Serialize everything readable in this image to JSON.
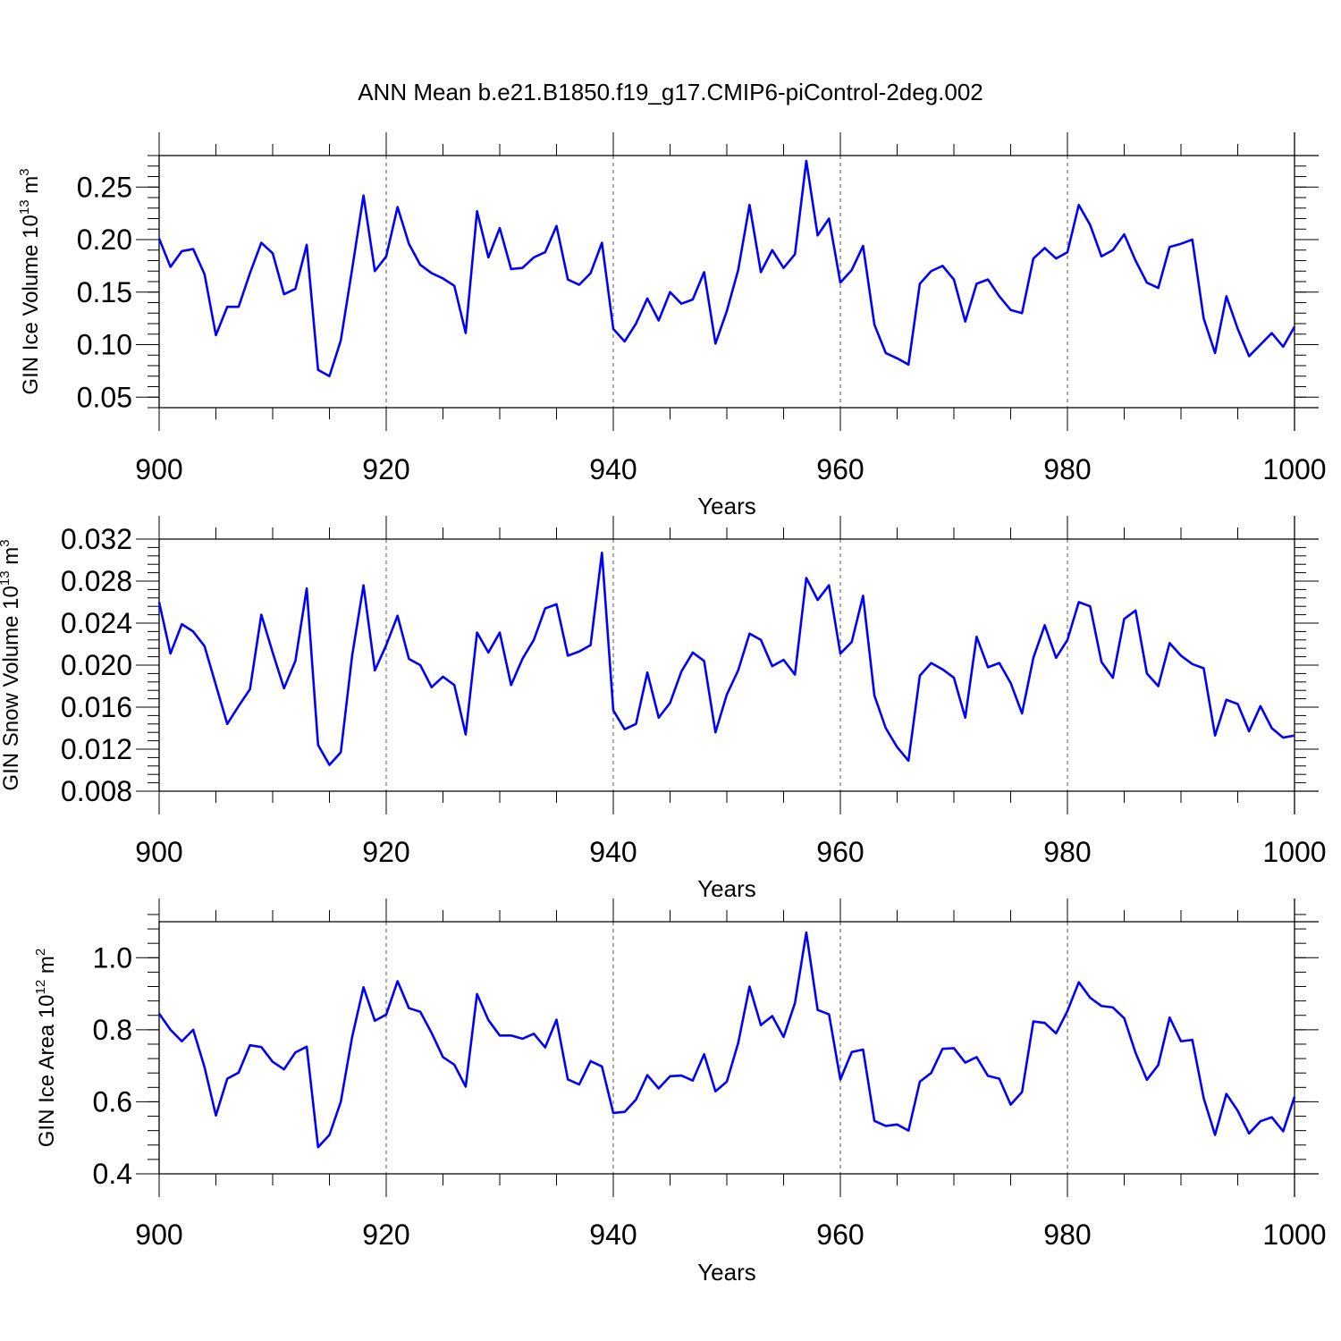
{
  "title": "ANN Mean b.e21.B1850.f19_g17.CMIP6-piControl-2deg.002",
  "chart_data": [
    {
      "type": "line",
      "name": "ice-volume",
      "ylabel_main": "GIN Ice Volume 10",
      "ylabel_exp": "13",
      "ylabel_unit": " m",
      "ylabel_unit_exp": "3",
      "xlabel": "Years",
      "xlim": [
        900,
        1000
      ],
      "ylim": [
        0.04,
        0.28
      ],
      "yticks": [
        0.05,
        0.1,
        0.15,
        0.2,
        0.25
      ],
      "ytick_labels": [
        "0.05",
        "0.10",
        "0.15",
        "0.20",
        "0.25"
      ],
      "xticks": [
        900,
        920,
        940,
        960,
        980,
        1000
      ],
      "xtick_labels": [
        "900",
        "920",
        "940",
        "960",
        "980",
        "1000"
      ],
      "grid_x": [
        920,
        940,
        960,
        980
      ],
      "color": "#0000ff",
      "x_start": 900,
      "values": [
        0.201,
        0.174,
        0.189,
        0.191,
        0.167,
        0.109,
        0.136,
        0.136,
        0.168,
        0.197,
        0.187,
        0.148,
        0.153,
        0.195,
        0.076,
        0.07,
        0.104,
        0.172,
        0.242,
        0.17,
        0.184,
        0.231,
        0.196,
        0.176,
        0.168,
        0.163,
        0.156,
        0.111,
        0.227,
        0.183,
        0.211,
        0.172,
        0.173,
        0.183,
        0.188,
        0.213,
        0.162,
        0.157,
        0.168,
        0.197,
        0.115,
        0.103,
        0.12,
        0.144,
        0.123,
        0.15,
        0.139,
        0.143,
        0.169,
        0.101,
        0.132,
        0.171,
        0.233,
        0.169,
        0.19,
        0.173,
        0.186,
        0.275,
        0.204,
        0.22,
        0.159,
        0.171,
        0.194,
        0.119,
        0.092,
        0.087,
        0.081,
        0.158,
        0.17,
        0.175,
        0.162,
        0.122,
        0.158,
        0.162,
        0.146,
        0.133,
        0.13,
        0.182,
        0.192,
        0.182,
        0.188,
        0.233,
        0.214,
        0.184,
        0.19,
        0.205,
        0.18,
        0.159,
        0.154,
        0.193,
        0.196,
        0.2,
        0.125,
        0.092,
        0.146,
        0.115,
        0.089,
        0.1,
        0.111,
        0.098,
        0.117
      ]
    },
    {
      "type": "line",
      "name": "snow-volume",
      "ylabel_main": "GIN Snow Volume 10",
      "ylabel_exp": "13",
      "ylabel_unit": " m",
      "ylabel_unit_exp": "3",
      "xlabel": "Years",
      "xlim": [
        900,
        1000
      ],
      "ylim": [
        0.008,
        0.032
      ],
      "yticks": [
        0.008,
        0.012,
        0.016,
        0.02,
        0.024,
        0.028,
        0.032
      ],
      "ytick_labels": [
        "0.008",
        "0.012",
        "0.016",
        "0.020",
        "0.024",
        "0.028",
        "0.032"
      ],
      "xticks": [
        900,
        920,
        940,
        960,
        980,
        1000
      ],
      "xtick_labels": [
        "900",
        "920",
        "940",
        "960",
        "980",
        "1000"
      ],
      "grid_x": [
        920,
        940,
        960,
        980
      ],
      "color": "#0000ff",
      "x_start": 900,
      "values": [
        0.026,
        0.0211,
        0.0239,
        0.0232,
        0.0218,
        0.0181,
        0.0144,
        0.0161,
        0.0177,
        0.0248,
        0.0212,
        0.0178,
        0.0204,
        0.0273,
        0.0124,
        0.0105,
        0.0117,
        0.0209,
        0.0276,
        0.0195,
        0.0219,
        0.0247,
        0.0206,
        0.02,
        0.0179,
        0.0189,
        0.0181,
        0.0134,
        0.0231,
        0.0212,
        0.0231,
        0.0181,
        0.0206,
        0.0224,
        0.0254,
        0.0258,
        0.0209,
        0.0213,
        0.0219,
        0.0307,
        0.0157,
        0.0139,
        0.0144,
        0.0193,
        0.015,
        0.0164,
        0.0194,
        0.0212,
        0.0204,
        0.0136,
        0.0172,
        0.0195,
        0.023,
        0.0224,
        0.0199,
        0.0205,
        0.0191,
        0.0283,
        0.0262,
        0.0276,
        0.0211,
        0.0222,
        0.0266,
        0.0171,
        0.014,
        0.0122,
        0.0109,
        0.019,
        0.0202,
        0.0196,
        0.0188,
        0.015,
        0.0227,
        0.0198,
        0.0202,
        0.0183,
        0.0154,
        0.0207,
        0.0238,
        0.0207,
        0.0224,
        0.026,
        0.0256,
        0.0203,
        0.0188,
        0.0244,
        0.0252,
        0.0192,
        0.018,
        0.0221,
        0.0209,
        0.0201,
        0.0197,
        0.0133,
        0.0167,
        0.0163,
        0.0137,
        0.0161,
        0.014,
        0.0131,
        0.0133
      ]
    },
    {
      "type": "line",
      "name": "ice-area",
      "ylabel_main": "GIN Ice Area 10",
      "ylabel_exp": "12",
      "ylabel_unit": " m",
      "ylabel_unit_exp": "2",
      "xlabel": "Years",
      "xlim": [
        900,
        1000
      ],
      "ylim": [
        0.4,
        1.1
      ],
      "yticks": [
        0.4,
        0.6,
        0.8,
        1.0
      ],
      "ytick_labels": [
        "0.4",
        "0.6",
        "0.8",
        "1.0"
      ],
      "xticks": [
        900,
        920,
        940,
        960,
        980,
        1000
      ],
      "xtick_labels": [
        "900",
        "920",
        "940",
        "960",
        "980",
        "1000"
      ],
      "grid_x": [
        920,
        940,
        960,
        980
      ],
      "color": "#0000ff",
      "x_start": 900,
      "values": [
        0.845,
        0.8,
        0.768,
        0.8,
        0.696,
        0.562,
        0.664,
        0.681,
        0.757,
        0.752,
        0.711,
        0.69,
        0.737,
        0.753,
        0.474,
        0.508,
        0.6,
        0.78,
        0.918,
        0.825,
        0.842,
        0.935,
        0.86,
        0.85,
        0.791,
        0.724,
        0.703,
        0.642,
        0.899,
        0.827,
        0.784,
        0.784,
        0.775,
        0.789,
        0.751,
        0.828,
        0.662,
        0.648,
        0.713,
        0.698,
        0.569,
        0.572,
        0.606,
        0.674,
        0.637,
        0.671,
        0.673,
        0.659,
        0.732,
        0.629,
        0.656,
        0.763,
        0.92,
        0.813,
        0.838,
        0.78,
        0.874,
        1.07,
        0.855,
        0.843,
        0.662,
        0.738,
        0.745,
        0.547,
        0.533,
        0.537,
        0.52,
        0.656,
        0.68,
        0.747,
        0.749,
        0.709,
        0.724,
        0.672,
        0.664,
        0.592,
        0.627,
        0.823,
        0.819,
        0.79,
        0.852,
        0.932,
        0.889,
        0.866,
        0.862,
        0.832,
        0.736,
        0.661,
        0.702,
        0.834,
        0.768,
        0.772,
        0.61,
        0.508,
        0.622,
        0.575,
        0.512,
        0.546,
        0.557,
        0.518,
        0.614
      ]
    }
  ]
}
